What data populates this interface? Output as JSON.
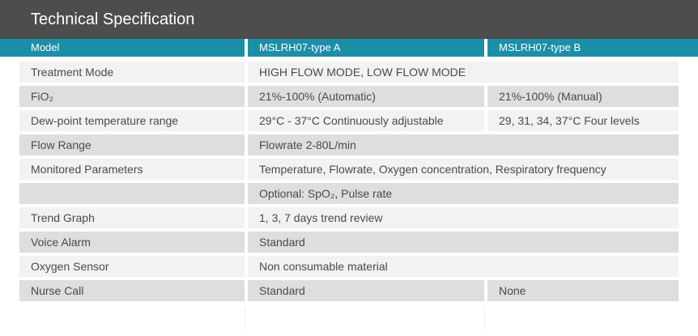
{
  "title": "Technical Specification",
  "header": {
    "col1": "Model",
    "col2": "MSLRH07-type A",
    "col3": "MSLRH07-type B"
  },
  "rows": [
    {
      "label": "Treatment Mode",
      "a": "HIGH FLOW MODE, LOW FLOW MODE",
      "b": null
    },
    {
      "label": "FiO₂",
      "a": "21%-100% (Automatic)",
      "b": "21%-100% (Manual)"
    },
    {
      "label": "Dew-point temperature range",
      "a": "29°C - 37°C Continuously adjustable",
      "b": "29, 31, 34, 37°C Four levels"
    },
    {
      "label": "Flow Range",
      "a": "Flowrate 2-80L/min",
      "b": null
    },
    {
      "label": "Monitored Parameters",
      "a": "Temperature, Flowrate, Oxygen concentration, Respiratory frequency",
      "b": null
    },
    {
      "label": "",
      "a": "Optional: SpO₂, Pulse rate",
      "b": null
    },
    {
      "label": "Trend Graph",
      "a": "1, 3, 7 days trend review",
      "b": null
    },
    {
      "label": "Voice Alarm",
      "a": "Standard",
      "b": null
    },
    {
      "label": "Oxygen Sensor",
      "a": "Non consumable material",
      "b": null
    },
    {
      "label": "Nurse Call",
      "a": "Standard",
      "b": "None"
    }
  ],
  "colors": {
    "title_bg": "#4d4d4d",
    "header_bg": "#1b8fa8",
    "row_light": "#f2f2f2",
    "row_dark": "#dedede"
  }
}
